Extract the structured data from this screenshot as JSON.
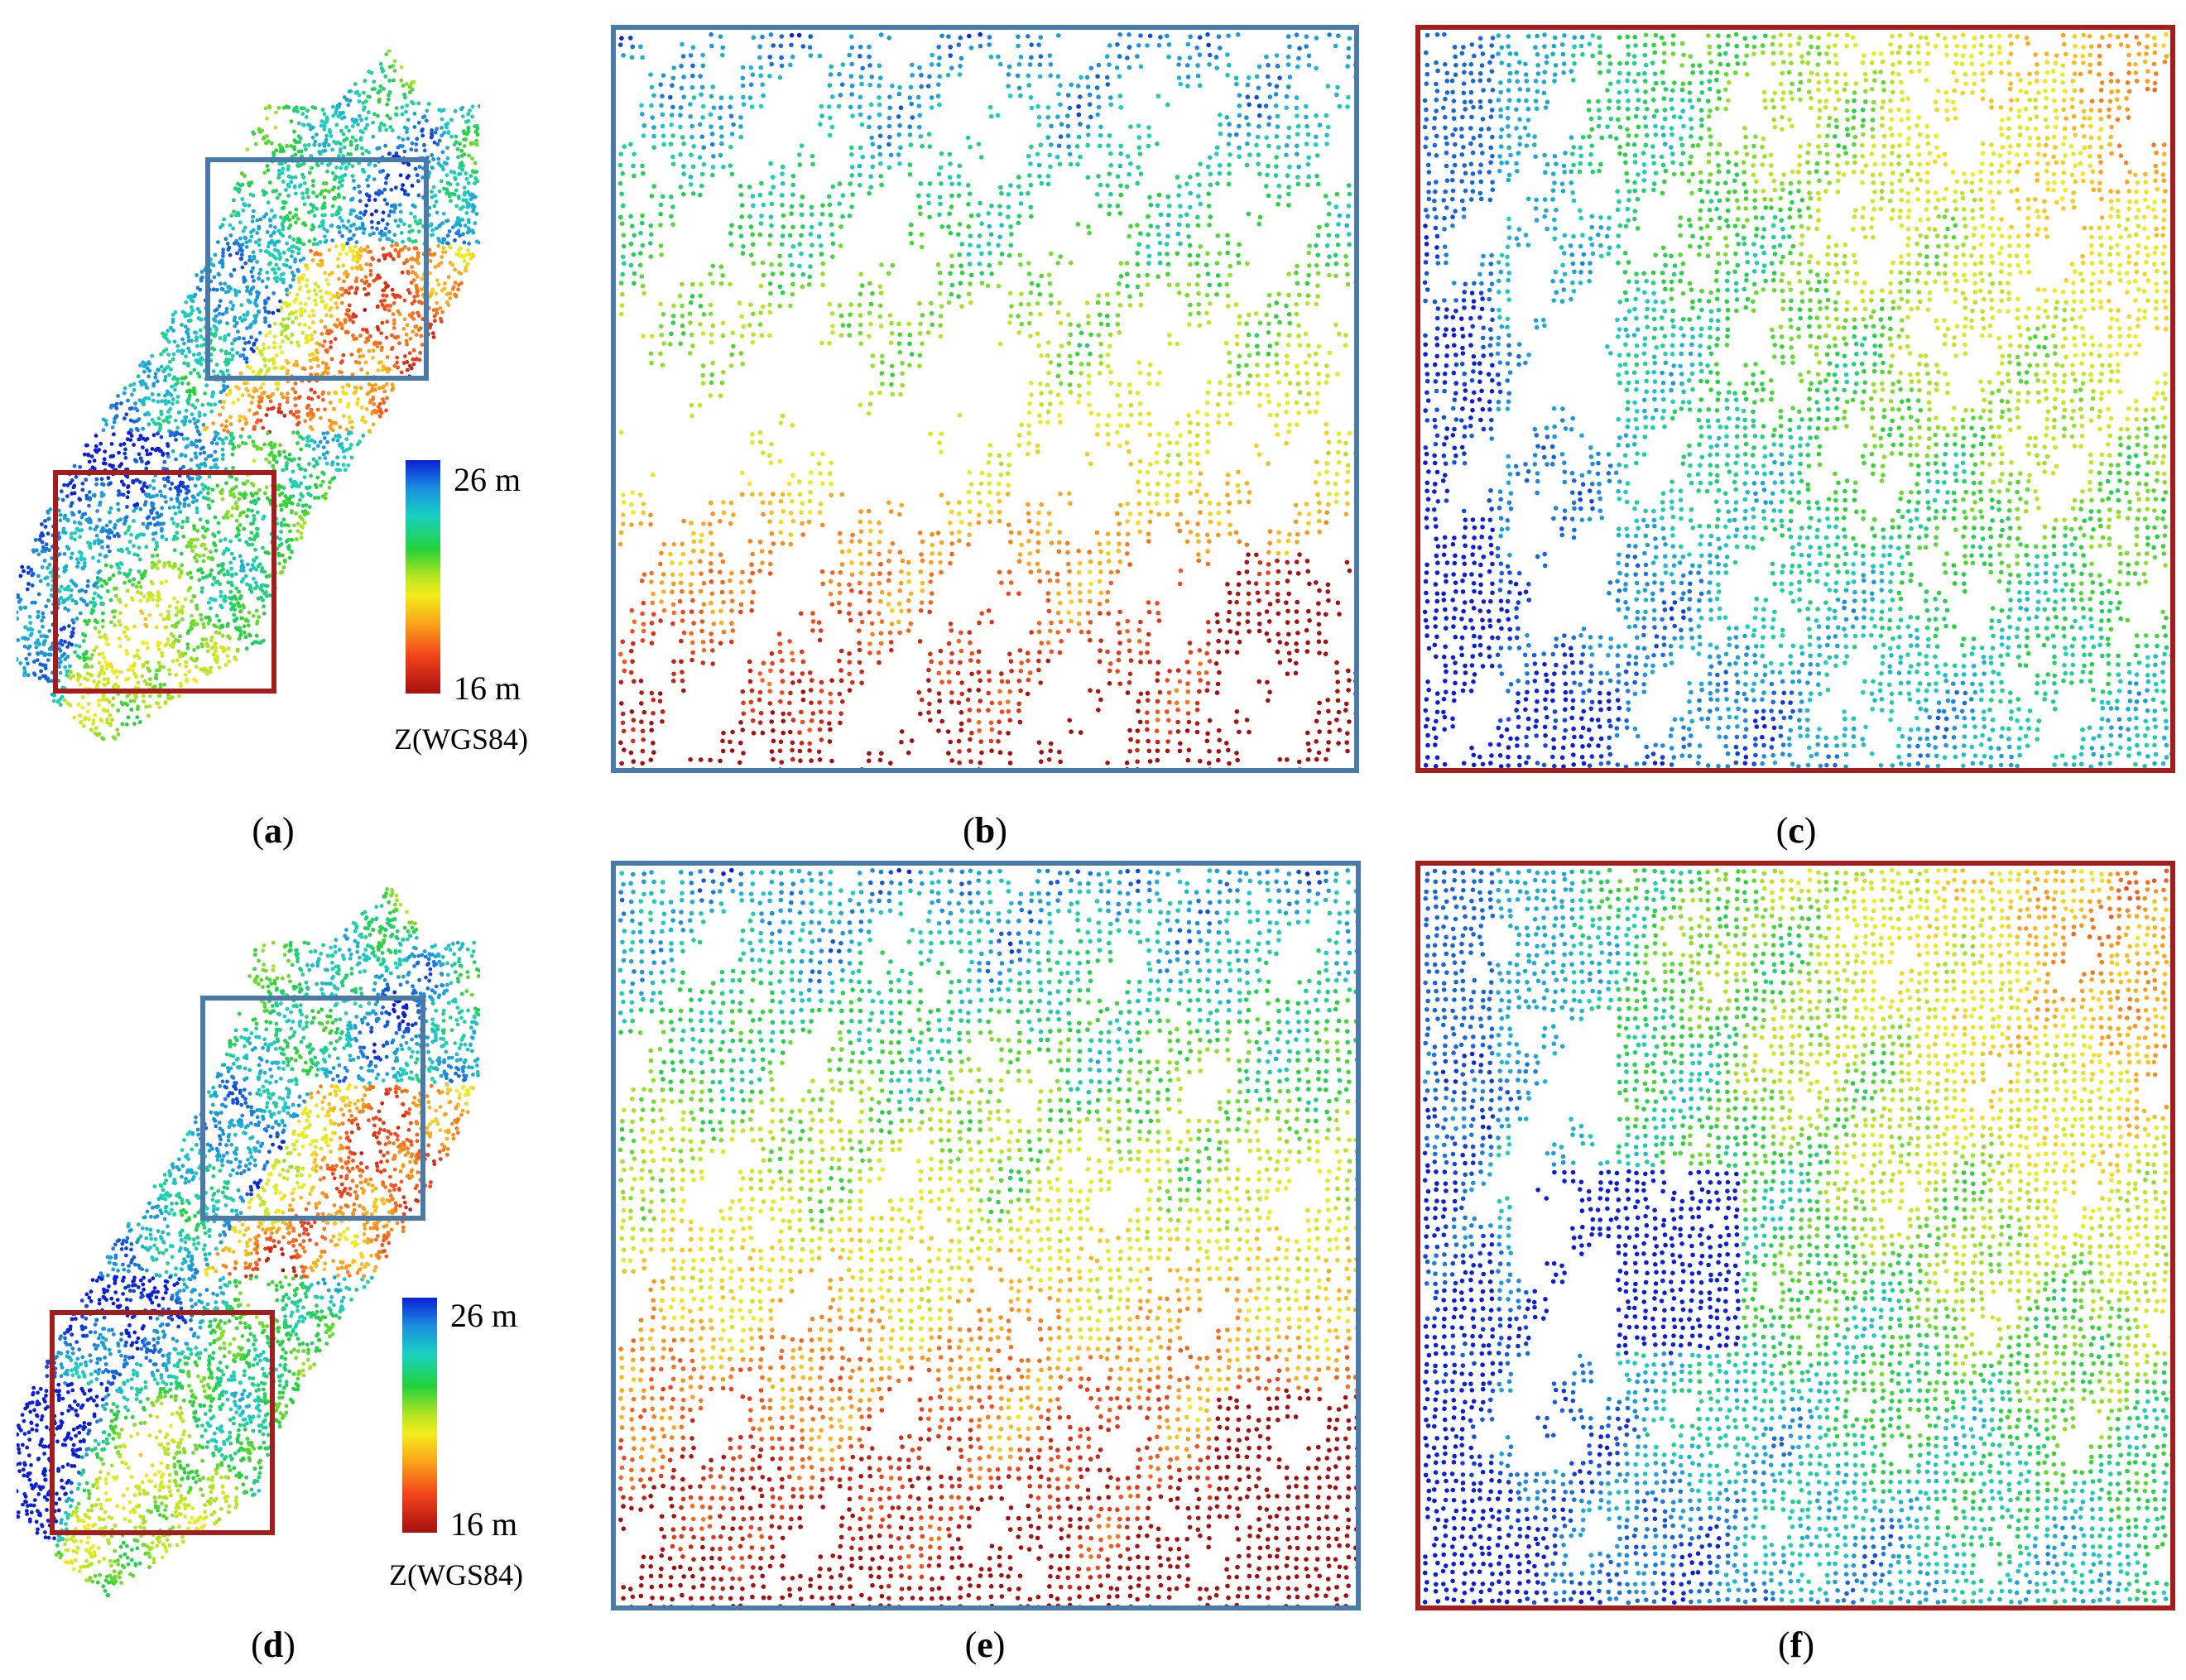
{
  "figure": {
    "panels": [
      {
        "id": "a",
        "type": "overview"
      },
      {
        "id": "b",
        "type": "zoom",
        "frame": "blue",
        "scheme": "b"
      },
      {
        "id": "c",
        "type": "zoom",
        "frame": "red",
        "scheme": "c"
      },
      {
        "id": "d",
        "type": "overview"
      },
      {
        "id": "e",
        "type": "zoom",
        "frame": "blue",
        "scheme": "e"
      },
      {
        "id": "f",
        "type": "zoom",
        "frame": "red",
        "scheme": "f"
      }
    ],
    "captions": {
      "a": "a",
      "b": "b",
      "c": "c",
      "d": "d",
      "e": "e",
      "f": "f"
    },
    "colorbar": {
      "max_label": "26 m",
      "min_label": "16 m",
      "title": "Z(WGS84)",
      "max_value": 26,
      "min_value": 16,
      "colors": [
        "#0a1fd6",
        "#1b8fe0",
        "#19d1c2",
        "#23d23a",
        "#b6e51f",
        "#f4ec1c",
        "#f9a41a",
        "#f2421b",
        "#a5100f"
      ]
    },
    "frame_colors": {
      "blue": "#4a7aa8",
      "red": "#a31d1d"
    }
  }
}
